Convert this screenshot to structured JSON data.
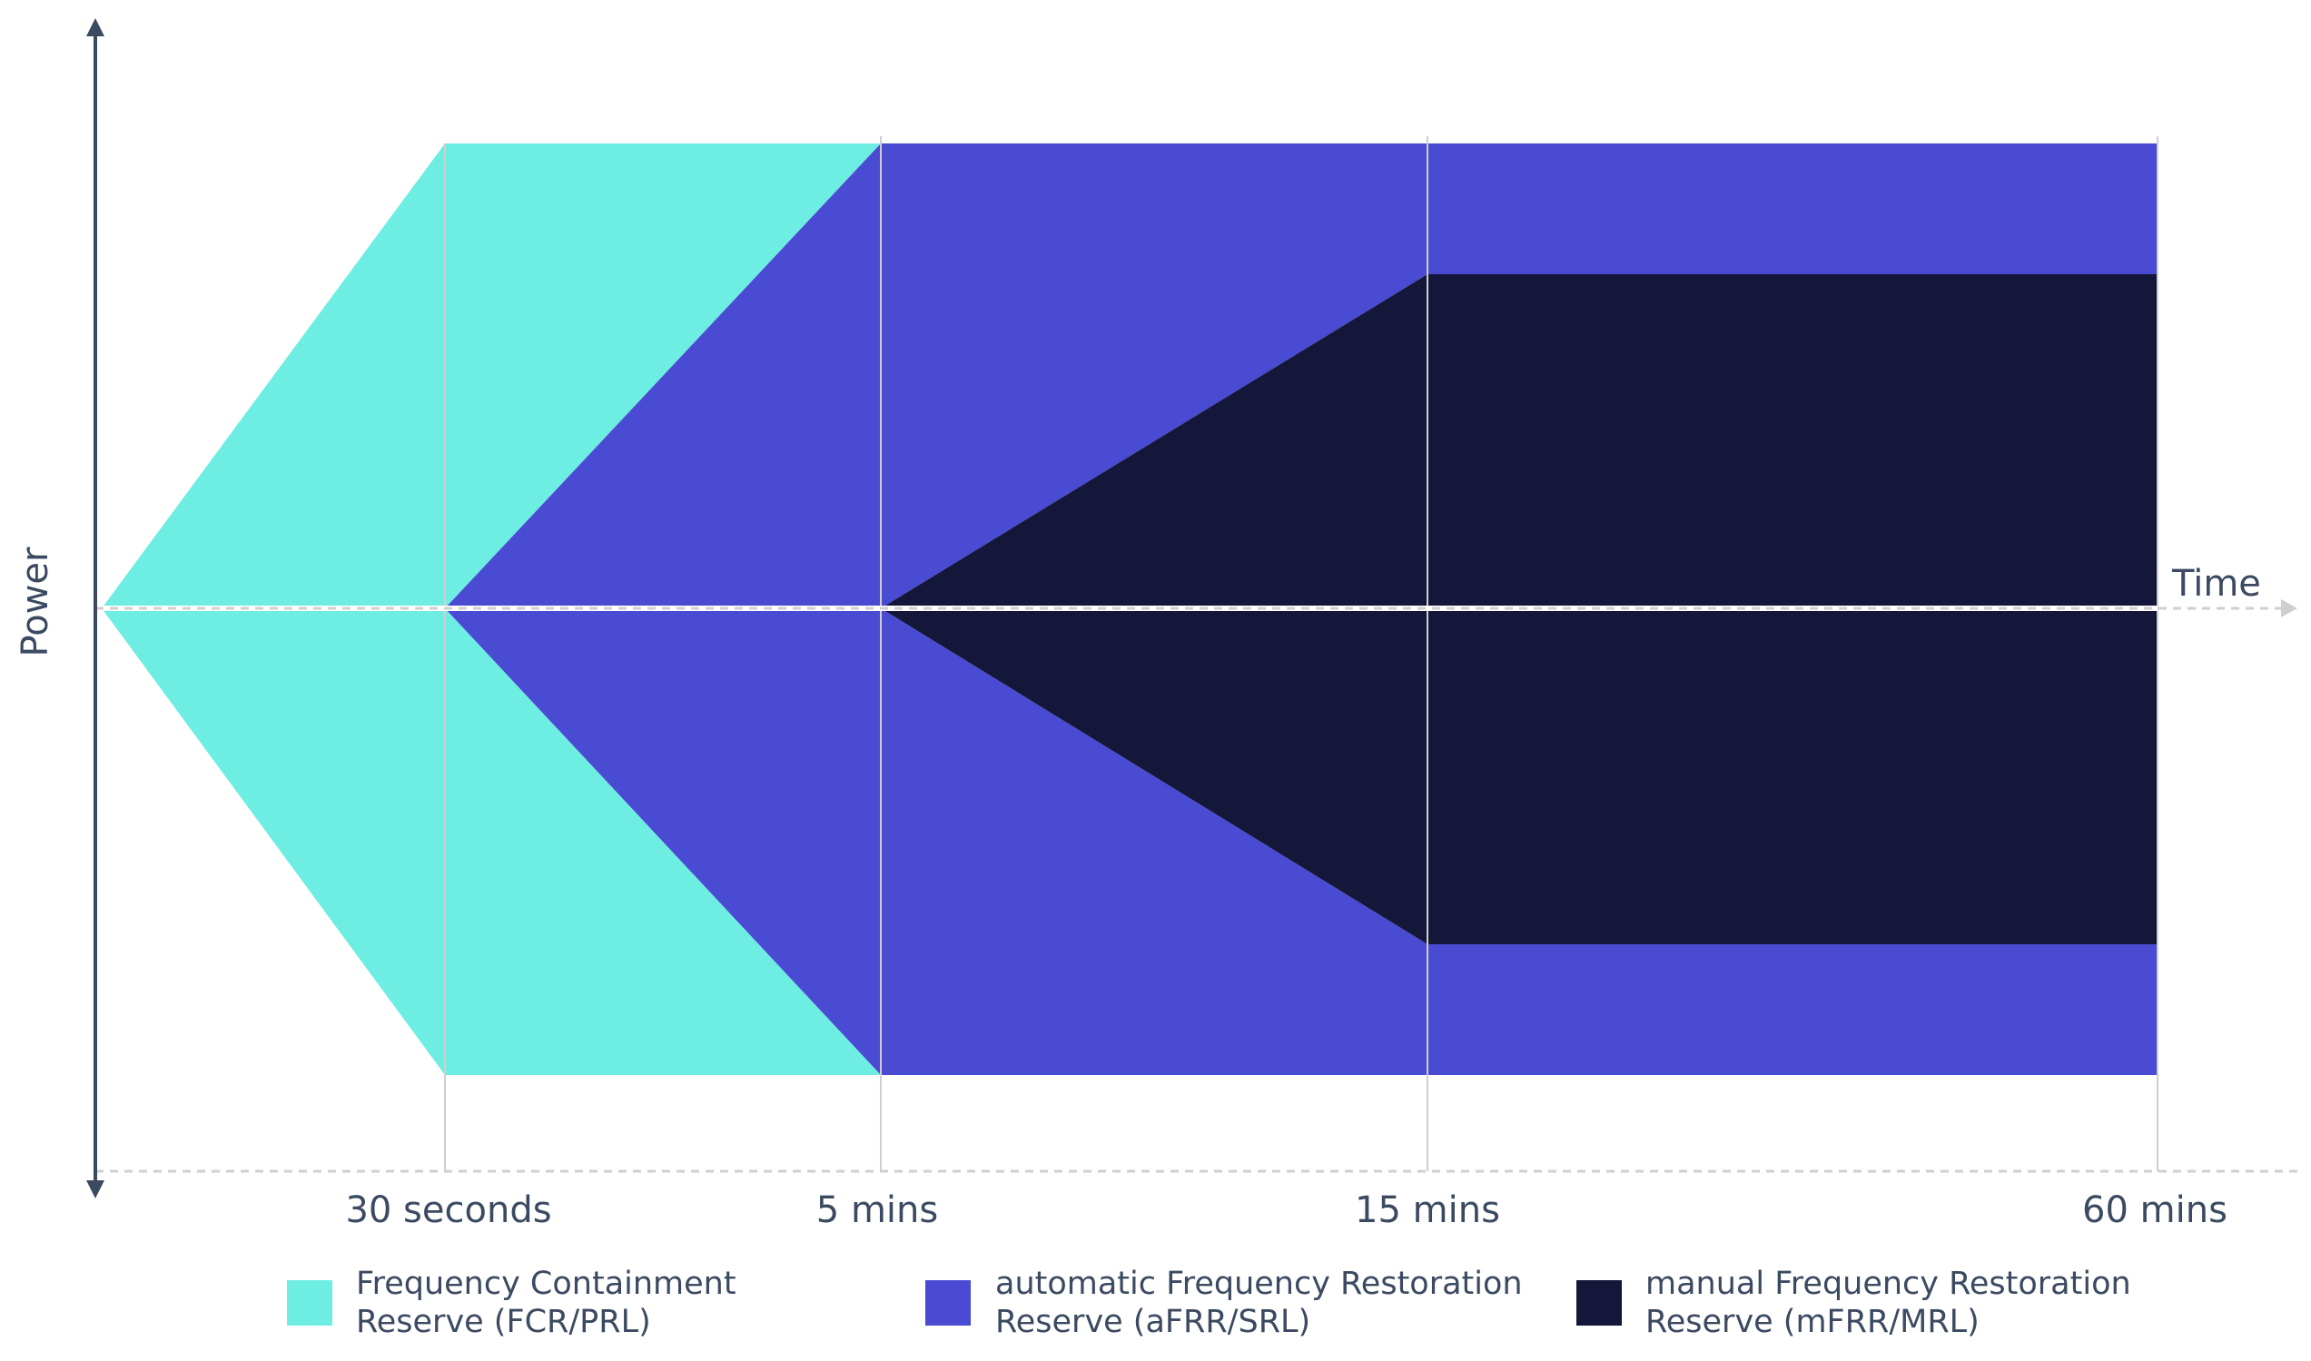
{
  "diagram": {
    "axis_labels": {
      "y": "Power",
      "x": "Time"
    },
    "time_marks": [
      "30 seconds",
      "5 mins",
      "15 mins",
      "60 mins"
    ],
    "legend": [
      {
        "line1": "Frequency Containment",
        "line2": "Reserve (FCR/PRL)",
        "color": "#6eeee3"
      },
      {
        "line1": "automatic Frequency Restoration",
        "line2": "Reserve (aFRR/SRL)",
        "color": "#4a4bd3"
      },
      {
        "line1": "manual Frequency Restoration",
        "line2": "Reserve (mFRR/MRL)",
        "color": "#141739"
      }
    ],
    "colors": {
      "fcr": "#6eeee3",
      "afrr": "#4a4bd3",
      "mfrr": "#141739",
      "axis": "#3b4a61",
      "grid": "#cfcfcf"
    }
  }
}
